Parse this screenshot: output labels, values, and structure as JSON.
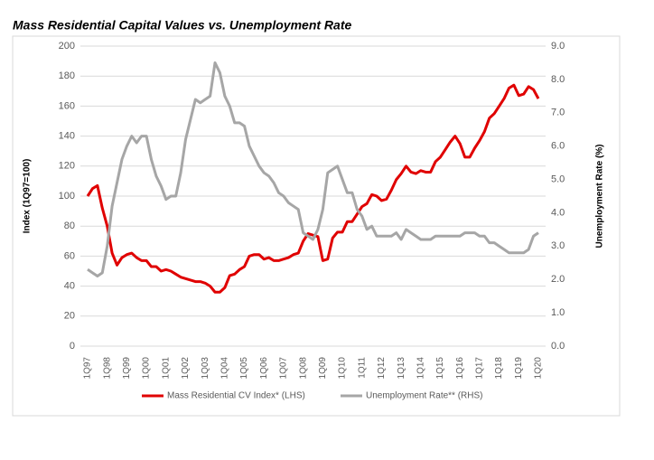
{
  "chart_data": {
    "type": "line",
    "title": "Mass Residential Capital Values vs. Unemployment Rate",
    "y_label": "Index (1Q97=100)",
    "y2_label": "Unemployment Rate (%)",
    "categories": [
      "1Q97",
      null,
      null,
      null,
      "1Q98",
      null,
      null,
      null,
      "1Q99",
      null,
      null,
      null,
      "1Q00",
      null,
      null,
      null,
      "1Q01",
      null,
      null,
      null,
      "1Q02",
      null,
      null,
      null,
      "1Q03",
      null,
      null,
      null,
      "1Q04",
      null,
      null,
      null,
      "1Q05",
      null,
      null,
      null,
      "1Q06",
      null,
      null,
      null,
      "1Q07",
      null,
      null,
      null,
      "1Q08",
      null,
      null,
      null,
      "1Q09",
      null,
      null,
      null,
      "1Q10",
      null,
      null,
      null,
      "1Q11",
      null,
      null,
      null,
      "1Q12",
      null,
      null,
      null,
      "1Q13",
      null,
      null,
      null,
      "1Q14",
      null,
      null,
      null,
      "1Q15",
      null,
      null,
      null,
      "1Q16",
      null,
      null,
      null,
      "1Q17",
      null,
      null,
      null,
      "1Q18",
      null,
      null,
      null,
      "1Q19",
      null,
      null,
      null,
      "1Q20"
    ],
    "series": [
      {
        "name": "Mass Residential CV Index* (LHS)",
        "color": "#e00000",
        "axis": "y",
        "values": [
          100,
          105,
          107,
          92,
          80,
          62,
          54,
          59,
          61,
          62,
          59,
          57,
          57,
          53,
          53,
          50,
          51,
          50,
          48,
          46,
          45,
          44,
          43,
          43,
          42,
          40,
          36,
          36,
          39,
          47,
          48,
          51,
          53,
          60,
          61,
          61,
          58,
          59,
          57,
          57,
          58,
          59,
          61,
          62,
          70,
          75,
          74,
          73,
          57,
          58,
          72,
          76,
          76,
          83,
          83,
          88,
          93,
          95,
          101,
          100,
          97,
          98,
          104,
          111,
          115,
          120,
          116,
          115,
          117,
          116,
          116,
          123,
          126,
          131,
          136,
          140,
          135,
          126,
          126,
          132,
          137,
          143,
          152,
          155,
          160,
          165,
          172,
          174,
          167,
          168,
          173,
          171,
          165
        ]
      },
      {
        "name": "Unemployment Rate** (RHS)",
        "color": "#a6a6a6",
        "axis": "y2",
        "values": [
          2.3,
          2.2,
          2.1,
          2.2,
          3.0,
          4.2,
          4.9,
          5.6,
          6.0,
          6.3,
          6.1,
          6.3,
          6.3,
          5.6,
          5.1,
          4.8,
          4.4,
          4.5,
          4.5,
          5.2,
          6.2,
          6.8,
          7.4,
          7.3,
          7.4,
          7.5,
          8.5,
          8.2,
          7.5,
          7.2,
          6.7,
          6.7,
          6.6,
          6.0,
          5.7,
          5.4,
          5.2,
          5.1,
          4.9,
          4.6,
          4.5,
          4.3,
          4.2,
          4.1,
          3.4,
          3.3,
          3.2,
          3.5,
          4.1,
          5.2,
          5.3,
          5.4,
          5.0,
          4.6,
          4.6,
          4.1,
          3.9,
          3.5,
          3.6,
          3.3,
          3.3,
          3.3,
          3.3,
          3.4,
          3.2,
          3.5,
          3.4,
          3.3,
          3.2,
          3.2,
          3.2,
          3.3,
          3.3,
          3.3,
          3.3,
          3.3,
          3.3,
          3.4,
          3.4,
          3.4,
          3.3,
          3.3,
          3.1,
          3.1,
          3.0,
          2.9,
          2.8,
          2.8,
          2.8,
          2.8,
          2.9,
          3.3,
          3.4
        ]
      }
    ],
    "ylim": [
      0,
      200
    ],
    "yticks": [
      0,
      20,
      40,
      60,
      80,
      100,
      120,
      140,
      160,
      180,
      200
    ],
    "y2lim": [
      0,
      9
    ],
    "y2ticks": [
      {
        "value": 0,
        "label": "0.0"
      },
      {
        "value": 1,
        "label": "1.0"
      },
      {
        "value": 2,
        "label": "2.0"
      },
      {
        "value": 3,
        "label": "3.0"
      },
      {
        "value": 4,
        "label": "4.0"
      },
      {
        "value": 5,
        "label": "5.0"
      },
      {
        "value": 6,
        "label": "6.0"
      },
      {
        "value": 7,
        "label": "7.0"
      },
      {
        "value": 8,
        "label": "8.0"
      },
      {
        "value": 9,
        "label": "9.0"
      }
    ],
    "grid": true,
    "legend": "bottom"
  }
}
